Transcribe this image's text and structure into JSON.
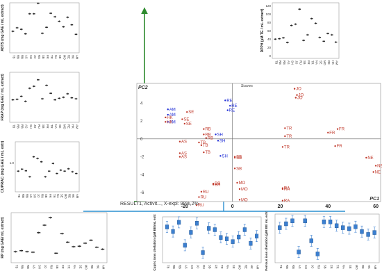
{
  "colors": {
    "green_arrow": "#2e8b2e",
    "blue_arrow": "#2a8fd0",
    "olive_arrow": "#b8961a",
    "pca_blue": "#1c2bd6",
    "pca_red": "#c0392b",
    "box_small": "#222222",
    "box_blue": "#3b7fd0"
  },
  "sample_codes": [
    "TB",
    "RB",
    "RB",
    "AS",
    "SH",
    "JO",
    "RU",
    "SB",
    "FR",
    "TR",
    "NA",
    "SE",
    "MO",
    "RE",
    "HK",
    "AM"
  ],
  "pca": {
    "title": "Scores",
    "pc1_label": "PC1",
    "pc2_label": "PC2",
    "caption": "RESULT1, Activit..., X-expl: 98%,2%",
    "x_ticks": [
      -20,
      0,
      20,
      40,
      60
    ],
    "y_ticks": [
      4,
      2,
      0,
      -2,
      -4,
      -6
    ],
    "xlim": [
      -40,
      62
    ],
    "ylim": [
      -7,
      6.2
    ],
    "points": [
      {
        "label": "JO",
        "x": 26,
        "y": 5.6,
        "c": "red"
      },
      {
        "label": "JO",
        "x": 27,
        "y": 4.9,
        "c": "red"
      },
      {
        "label": "JO",
        "x": 26.5,
        "y": 4.6,
        "c": "red"
      },
      {
        "label": "RE",
        "x": -3,
        "y": 4.3,
        "c": "blue"
      },
      {
        "label": "RE",
        "x": -1,
        "y": 3.7,
        "c": "blue"
      },
      {
        "label": "RE",
        "x": -2,
        "y": 3.2,
        "c": "blue"
      },
      {
        "label": "AM",
        "x": -27,
        "y": 3.3,
        "c": "blue"
      },
      {
        "label": "AM",
        "x": -27,
        "y": 2.7,
        "c": "blue"
      },
      {
        "label": "AM",
        "x": -27,
        "y": 1.9,
        "c": "blue"
      },
      {
        "label": "HK",
        "x": -28,
        "y": 2.4,
        "c": "red"
      },
      {
        "label": "HK",
        "x": -28,
        "y": 1.9,
        "c": "red"
      },
      {
        "label": "SE",
        "x": -19,
        "y": 3.0,
        "c": "red"
      },
      {
        "label": "SE",
        "x": -21,
        "y": 2.2,
        "c": "red"
      },
      {
        "label": "SE",
        "x": -20,
        "y": 1.7,
        "c": "red"
      },
      {
        "label": "RB",
        "x": -12,
        "y": 1.1,
        "c": "red"
      },
      {
        "label": "RB",
        "x": -12,
        "y": 0.5,
        "c": "red"
      },
      {
        "label": "RB",
        "x": -11,
        "y": 0.1,
        "c": "red"
      },
      {
        "label": "SH",
        "x": -7,
        "y": 0.5,
        "c": "blue"
      },
      {
        "label": "SH",
        "x": -6,
        "y": -0.2,
        "c": "blue"
      },
      {
        "label": "SH",
        "x": -5,
        "y": -1.9,
        "c": "blue"
      },
      {
        "label": "TB",
        "x": -14,
        "y": -0.4,
        "c": "red"
      },
      {
        "label": "TB",
        "x": -13,
        "y": -0.7,
        "c": "red"
      },
      {
        "label": "TB",
        "x": -12,
        "y": -1.5,
        "c": "red"
      },
      {
        "label": "AS",
        "x": -22,
        "y": -0.3,
        "c": "red"
      },
      {
        "label": "AS",
        "x": -22,
        "y": -1.6,
        "c": "red"
      },
      {
        "label": "AS",
        "x": -22,
        "y": -2.0,
        "c": "red"
      },
      {
        "label": "SB",
        "x": 1,
        "y": -2.0,
        "c": "red"
      },
      {
        "label": "SB",
        "x": 1,
        "y": -2.1,
        "c": "red"
      },
      {
        "label": "SB",
        "x": 1,
        "y": -3.3,
        "c": "red"
      },
      {
        "label": "BR",
        "x": -8,
        "y": -5.0,
        "c": "red"
      },
      {
        "label": "BR",
        "x": -8,
        "y": -5.1,
        "c": "red"
      },
      {
        "label": "RU",
        "x": -13,
        "y": -5.9,
        "c": "red"
      },
      {
        "label": "RU",
        "x": -14,
        "y": -6.5,
        "c": "red"
      },
      {
        "label": "RU",
        "x": -15,
        "y": -7.4,
        "c": "red"
      },
      {
        "label": "MO",
        "x": 2,
        "y": -4.9,
        "c": "red"
      },
      {
        "label": "MO",
        "x": 3,
        "y": -5.6,
        "c": "red"
      },
      {
        "label": "MO",
        "x": 3,
        "y": -6.8,
        "c": "red"
      },
      {
        "label": "TR",
        "x": 22,
        "y": 1.2,
        "c": "red"
      },
      {
        "label": "TR",
        "x": 22,
        "y": 0.3,
        "c": "red"
      },
      {
        "label": "TR",
        "x": 21,
        "y": -0.9,
        "c": "red"
      },
      {
        "label": "FR",
        "x": 44,
        "y": 1.1,
        "c": "red"
      },
      {
        "label": "FR",
        "x": 40,
        "y": 0.7,
        "c": "red"
      },
      {
        "label": "FR",
        "x": 43,
        "y": -0.8,
        "c": "red"
      },
      {
        "label": "RA",
        "x": 21,
        "y": -5.5,
        "c": "red"
      },
      {
        "label": "RA",
        "x": 21,
        "y": -5.6,
        "c": "red"
      },
      {
        "label": "RA",
        "x": 21,
        "y": -6.9,
        "c": "red"
      },
      {
        "label": "NE",
        "x": 56,
        "y": -2.1,
        "c": "red"
      },
      {
        "label": "NE",
        "x": 60,
        "y": -3.0,
        "c": "red"
      },
      {
        "label": "NE",
        "x": 59,
        "y": -3.7,
        "c": "red"
      }
    ]
  },
  "panels": {
    "abts": {
      "ylabel": "ABTS (mg GAE / mL extract)",
      "y_ticks": [],
      "ylim": [
        0,
        1
      ],
      "style": "small",
      "values": [
        0.43,
        0.5,
        0.47,
        0.38,
        0.78,
        0.78,
        0.99,
        0.39,
        0.51,
        0.79,
        0.72,
        0.63,
        0.52,
        0.71,
        0.56,
        0.37
      ]
    },
    "dpph": {
      "ylabel": "DPPH (µM TE / mL extract)",
      "y_ticks": [
        "0",
        "20",
        "40",
        "60",
        "80",
        "100",
        "120"
      ],
      "ylim": [
        0,
        130
      ],
      "style": "small",
      "values": [
        45,
        46,
        48,
        37,
        77,
        80,
        115,
        42,
        55,
        93,
        82,
        49,
        40,
        58,
        55,
        38
      ]
    },
    "frap": {
      "ylabel": "FRAP (mg GAE / mL extract)",
      "y_ticks": [],
      "ylim": [
        0,
        1
      ],
      "style": "small",
      "values": [
        0.45,
        0.46,
        0.52,
        0.42,
        0.68,
        0.72,
        0.85,
        0.47,
        0.74,
        0.58,
        0.45,
        0.48,
        0.5,
        0.57,
        0.49,
        0.47
      ]
    },
    "cuprac": {
      "ylabel": "CUPRAC (mg GAE / mL extr)",
      "y_ticks": [
        "1.0"
      ],
      "ylim": [
        0,
        1.5
      ],
      "style": "small",
      "values": [
        0.62,
        0.68,
        0.63,
        0.45,
        1.05,
        1.0,
        0.9,
        0.45,
        0.62,
        0.85,
        0.55,
        0.65,
        0.62,
        0.69,
        0.6,
        0.55
      ]
    },
    "rp": {
      "ylabel": "RP (mg GAE/ mL extract)",
      "y_ticks": [],
      "ylim": [
        0,
        1
      ],
      "style": "small",
      "values": [
        0.22,
        0.24,
        0.22,
        0.21,
        0.6,
        0.75,
        0.9,
        0.19,
        0.58,
        0.41,
        0.32,
        0.33,
        0.39,
        0.45,
        0.31,
        0.27
      ]
    },
    "cupric": {
      "ylabel": "Cupric ions chelation (µM EE/mL extract)",
      "y_ticks": [],
      "ylim": [
        0,
        1
      ],
      "style": "blue",
      "values": [
        0.78,
        0.68,
        0.88,
        0.38,
        0.66,
        0.86,
        0.22,
        0.75,
        0.72,
        0.55,
        0.52,
        0.46,
        0.56,
        0.72,
        0.42,
        0.58
      ]
    },
    "ferrous": {
      "ylabel": "Ferrous ions chelation (µM EE/ mL extract)",
      "y_ticks": [],
      "ylim": [
        0,
        1
      ],
      "style": "blue",
      "values": [
        0.72,
        0.8,
        0.86,
        0.22,
        0.86,
        0.45,
        0.18,
        0.84,
        0.84,
        0.76,
        0.72,
        0.7,
        0.74,
        0.64,
        0.58,
        0.62
      ]
    }
  }
}
